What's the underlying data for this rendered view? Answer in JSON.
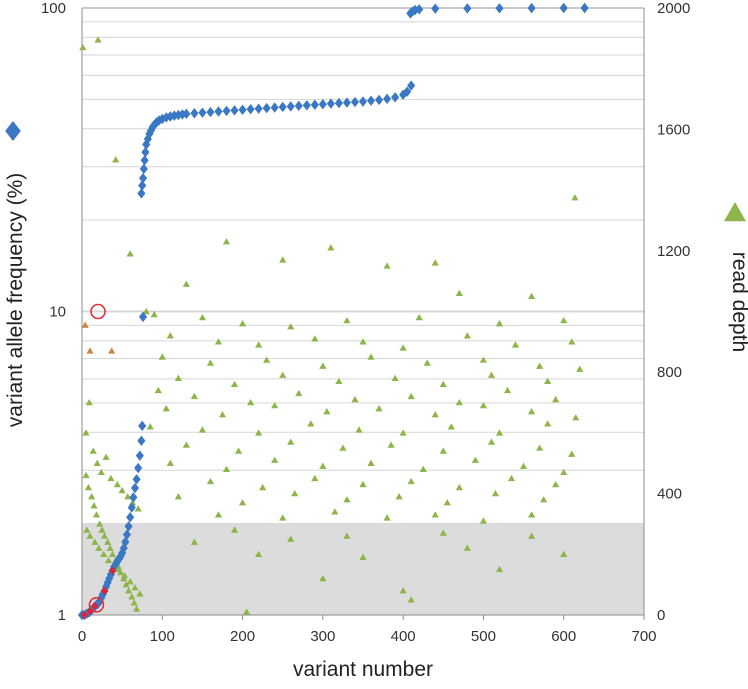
{
  "chart_data": {
    "type": "scatter",
    "title": "",
    "xlabel": "variant number",
    "ylabel_left": "variant allele frequency (%)",
    "ylabel_right": "read depth",
    "xlim": [
      0,
      700
    ],
    "x_ticks": [
      "0",
      "100",
      "200",
      "300",
      "400",
      "500",
      "600",
      "700"
    ],
    "y_left_scale": "log",
    "ylim_left": [
      1,
      100
    ],
    "y_left_ticks": [
      "1",
      "10",
      "100"
    ],
    "ylim_right": [
      0,
      2000
    ],
    "y_right_ticks": [
      "0",
      "400",
      "800",
      "1200",
      "1600",
      "2000"
    ],
    "grid": true,
    "shaded_region": {
      "axis": "right",
      "from": 0,
      "to": 300,
      "color": "#dcdcdc"
    },
    "colors": {
      "vaf": "#3a78c4",
      "vaf_highlight": "#e8202a",
      "depth": "#8db54a",
      "depth_highlight": "#c8884a",
      "circle": "#e0303a"
    },
    "series": [
      {
        "marker": "diamond",
        "axis": "left",
        "points": [
          [
            0,
            1.0
          ],
          [
            3,
            1.0
          ],
          [
            6,
            1.01
          ],
          [
            9,
            1.02
          ],
          [
            12,
            1.04
          ],
          [
            15,
            1.06
          ],
          [
            18,
            1.08
          ],
          [
            20,
            1.09
          ],
          [
            22,
            1.11
          ],
          [
            24,
            1.14
          ],
          [
            26,
            1.17
          ],
          [
            28,
            1.2
          ],
          [
            30,
            1.24
          ],
          [
            32,
            1.28
          ],
          [
            34,
            1.32
          ],
          [
            36,
            1.36
          ],
          [
            38,
            1.4
          ],
          [
            40,
            1.44
          ],
          [
            42,
            1.47
          ],
          [
            44,
            1.5
          ],
          [
            46,
            1.53
          ],
          [
            48,
            1.56
          ],
          [
            50,
            1.6
          ],
          [
            52,
            1.66
          ],
          [
            54,
            1.74
          ],
          [
            56,
            1.84
          ],
          [
            58,
            1.96
          ],
          [
            60,
            2.1
          ],
          [
            62,
            2.26
          ],
          [
            64,
            2.44
          ],
          [
            66,
            2.62
          ],
          [
            68,
            2.8
          ],
          [
            70,
            3.05
          ],
          [
            72,
            3.35
          ],
          [
            74,
            3.75
          ],
          [
            75,
            4.2
          ],
          [
            76,
            9.6
          ],
          [
            74,
            24.5
          ],
          [
            75,
            26
          ],
          [
            76,
            27.5
          ],
          [
            77,
            29.5
          ],
          [
            78,
            31.5
          ],
          [
            79,
            33.5
          ],
          [
            80,
            35.5
          ],
          [
            82,
            37
          ],
          [
            84,
            38.5
          ],
          [
            86,
            39.5
          ],
          [
            88,
            40.5
          ],
          [
            90,
            41.2
          ],
          [
            93,
            42
          ],
          [
            96,
            42.6
          ],
          [
            100,
            43.1
          ],
          [
            105,
            43.6
          ],
          [
            110,
            43.9
          ],
          [
            115,
            44.2
          ],
          [
            120,
            44.4
          ],
          [
            125,
            44.6
          ],
          [
            130,
            44.8
          ],
          [
            140,
            45.0
          ],
          [
            150,
            45.2
          ],
          [
            160,
            45.4
          ],
          [
            170,
            45.6
          ],
          [
            180,
            45.8
          ],
          [
            190,
            46.0
          ],
          [
            200,
            46.2
          ],
          [
            210,
            46.4
          ],
          [
            220,
            46.6
          ],
          [
            230,
            46.8
          ],
          [
            240,
            47.0
          ],
          [
            250,
            47.2
          ],
          [
            260,
            47.4
          ],
          [
            270,
            47.6
          ],
          [
            280,
            47.8
          ],
          [
            290,
            48.0
          ],
          [
            300,
            48.2
          ],
          [
            310,
            48.4
          ],
          [
            320,
            48.6
          ],
          [
            330,
            48.8
          ],
          [
            340,
            49.0
          ],
          [
            350,
            49.2
          ],
          [
            360,
            49.5
          ],
          [
            370,
            49.8
          ],
          [
            380,
            50.2
          ],
          [
            390,
            50.8
          ],
          [
            400,
            51.8
          ],
          [
            405,
            53
          ],
          [
            410,
            55.5
          ],
          [
            409,
            96
          ],
          [
            412,
            97.5
          ],
          [
            415,
            98.5
          ],
          [
            420,
            99
          ],
          [
            440,
            99.5
          ],
          [
            480,
            99.7
          ],
          [
            520,
            99.8
          ],
          [
            560,
            99.9
          ],
          [
            600,
            100
          ],
          [
            626,
            100
          ]
        ]
      },
      {
        "marker": "diamond",
        "axis": "left",
        "highlight": true,
        "points": [
          [
            3,
            1.0
          ],
          [
            10,
            1.03
          ],
          [
            16,
            1.07
          ],
          [
            28,
            1.2
          ],
          [
            38,
            1.4
          ]
        ]
      },
      {
        "marker": "triangle",
        "axis": "right",
        "points": [
          [
            1,
            1870
          ],
          [
            20,
            1895
          ],
          [
            42,
            1500
          ],
          [
            614,
            1375
          ],
          [
            180,
            1230
          ],
          [
            310,
            1210
          ],
          [
            250,
            1170
          ],
          [
            440,
            1160
          ],
          [
            380,
            1150
          ],
          [
            130,
            1090
          ],
          [
            470,
            1060
          ],
          [
            560,
            1050
          ],
          [
            80,
            1000
          ],
          [
            90,
            990
          ],
          [
            150,
            980
          ],
          [
            200,
            960
          ],
          [
            260,
            950
          ],
          [
            330,
            970
          ],
          [
            420,
            980
          ],
          [
            520,
            960
          ],
          [
            600,
            970
          ],
          [
            110,
            920
          ],
          [
            170,
            900
          ],
          [
            220,
            890
          ],
          [
            290,
            910
          ],
          [
            350,
            900
          ],
          [
            400,
            880
          ],
          [
            480,
            920
          ],
          [
            540,
            890
          ],
          [
            610,
            900
          ],
          [
            100,
            850
          ],
          [
            160,
            830
          ],
          [
            230,
            840
          ],
          [
            300,
            820
          ],
          [
            360,
            850
          ],
          [
            430,
            830
          ],
          [
            500,
            840
          ],
          [
            570,
            820
          ],
          [
            620,
            810
          ],
          [
            120,
            780
          ],
          [
            190,
            760
          ],
          [
            250,
            790
          ],
          [
            320,
            770
          ],
          [
            390,
            780
          ],
          [
            450,
            760
          ],
          [
            510,
            790
          ],
          [
            580,
            770
          ],
          [
            95,
            740
          ],
          [
            140,
            720
          ],
          [
            210,
            700
          ],
          [
            270,
            730
          ],
          [
            340,
            710
          ],
          [
            410,
            720
          ],
          [
            470,
            700
          ],
          [
            530,
            740
          ],
          [
            590,
            710
          ],
          [
            105,
            680
          ],
          [
            175,
            660
          ],
          [
            240,
            690
          ],
          [
            305,
            670
          ],
          [
            370,
            680
          ],
          [
            440,
            660
          ],
          [
            500,
            690
          ],
          [
            560,
            670
          ],
          [
            615,
            650
          ],
          [
            85,
            620
          ],
          [
            150,
            610
          ],
          [
            220,
            600
          ],
          [
            285,
            630
          ],
          [
            345,
            610
          ],
          [
            400,
            600
          ],
          [
            460,
            620
          ],
          [
            520,
            600
          ],
          [
            580,
            630
          ],
          [
            130,
            560
          ],
          [
            195,
            540
          ],
          [
            260,
            570
          ],
          [
            325,
            550
          ],
          [
            385,
            560
          ],
          [
            450,
            540
          ],
          [
            510,
            570
          ],
          [
            570,
            550
          ],
          [
            610,
            530
          ],
          [
            110,
            500
          ],
          [
            180,
            480
          ],
          [
            240,
            510
          ],
          [
            300,
            490
          ],
          [
            360,
            500
          ],
          [
            425,
            480
          ],
          [
            490,
            510
          ],
          [
            550,
            490
          ],
          [
            600,
            470
          ],
          [
            160,
            440
          ],
          [
            225,
            420
          ],
          [
            290,
            450
          ],
          [
            350,
            430
          ],
          [
            410,
            440
          ],
          [
            470,
            420
          ],
          [
            535,
            450
          ],
          [
            590,
            430
          ],
          [
            120,
            390
          ],
          [
            200,
            370
          ],
          [
            265,
            400
          ],
          [
            330,
            380
          ],
          [
            395,
            390
          ],
          [
            455,
            370
          ],
          [
            515,
            400
          ],
          [
            575,
            380
          ],
          [
            170,
            330
          ],
          [
            250,
            320
          ],
          [
            315,
            340
          ],
          [
            380,
            320
          ],
          [
            440,
            330
          ],
          [
            500,
            310
          ],
          [
            560,
            330
          ],
          [
            5,
            460
          ],
          [
            8,
            420
          ],
          [
            12,
            390
          ],
          [
            15,
            360
          ],
          [
            18,
            330
          ],
          [
            22,
            300
          ],
          [
            25,
            280
          ],
          [
            28,
            260
          ],
          [
            32,
            240
          ],
          [
            35,
            220
          ],
          [
            38,
            200
          ],
          [
            42,
            180
          ],
          [
            45,
            160
          ],
          [
            48,
            140
          ],
          [
            52,
            120
          ],
          [
            55,
            100
          ],
          [
            58,
            80
          ],
          [
            62,
            60
          ],
          [
            65,
            40
          ],
          [
            68,
            20
          ],
          [
            5,
            600
          ],
          [
            9,
            700
          ],
          [
            14,
            540
          ],
          [
            19,
            500
          ],
          [
            24,
            470
          ],
          [
            30,
            520
          ],
          [
            36,
            450
          ],
          [
            44,
            430
          ],
          [
            50,
            410
          ],
          [
            57,
            390
          ],
          [
            63,
            370
          ],
          [
            70,
            350
          ],
          [
            6,
            280
          ],
          [
            10,
            260
          ],
          [
            16,
            240
          ],
          [
            21,
            220
          ],
          [
            27,
            200
          ],
          [
            33,
            180
          ],
          [
            39,
            160
          ],
          [
            46,
            150
          ],
          [
            53,
            130
          ],
          [
            60,
            110
          ],
          [
            66,
            90
          ],
          [
            72,
            70
          ],
          [
            190,
            280
          ],
          [
            260,
            250
          ],
          [
            330,
            260
          ],
          [
            450,
            270
          ],
          [
            560,
            260
          ],
          [
            220,
            200
          ],
          [
            350,
            190
          ],
          [
            480,
            220
          ],
          [
            600,
            200
          ],
          [
            300,
            120
          ],
          [
            400,
            80
          ],
          [
            205,
            10
          ],
          [
            410,
            50
          ],
          [
            520,
            150
          ],
          [
            140,
            240
          ],
          [
            60,
            1190
          ]
        ]
      },
      {
        "marker": "triangle",
        "axis": "right",
        "highlight": true,
        "points": [
          [
            4,
            955
          ],
          [
            10,
            870
          ],
          [
            37,
            870
          ]
        ]
      }
    ],
    "circled_points": [
      {
        "x": 20,
        "y_right": 1000
      },
      {
        "x": 18,
        "y_left": 1.08
      }
    ]
  }
}
